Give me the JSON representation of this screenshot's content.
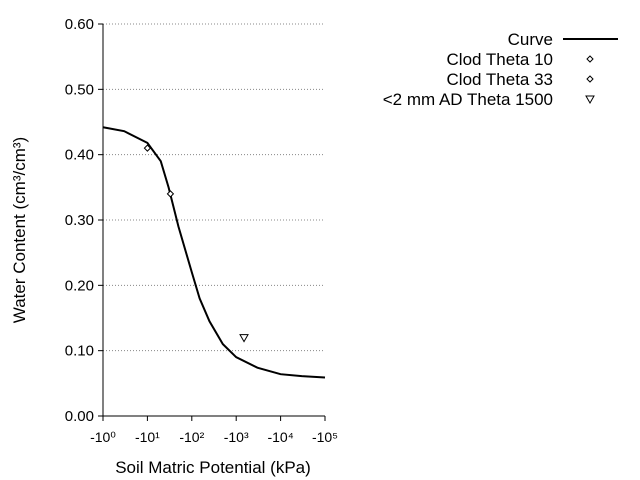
{
  "chart_data": {
    "type": "line",
    "x_label": "Soil Matric Potential (kPa)",
    "y_label": "Water Content (cm³/cm³)",
    "log_x": true,
    "grid": true,
    "legend": "top-right",
    "xlim": [
      -1,
      -100000
    ],
    "xticks": [
      {
        "value": -1,
        "label": "-10⁰"
      },
      {
        "value": -10,
        "label": "-10¹"
      },
      {
        "value": -100,
        "label": "-10²"
      },
      {
        "value": -1000,
        "label": "-10³"
      },
      {
        "value": -10000,
        "label": "-10⁴"
      },
      {
        "value": -100000,
        "label": "-10⁵"
      }
    ],
    "ylim": [
      0,
      0.6
    ],
    "yticks": [
      {
        "value": 0,
        "label": "0.00"
      },
      {
        "value": 0.1,
        "label": "0.10"
      },
      {
        "value": 0.2,
        "label": "0.20"
      },
      {
        "value": 0.3,
        "label": "0.30"
      },
      {
        "value": 0.4,
        "label": "0.40"
      },
      {
        "value": 0.5,
        "label": "0.50"
      },
      {
        "value": 0.6,
        "label": "0.60"
      }
    ],
    "series": [
      {
        "name": "Curve",
        "color": "#000000",
        "marker": "line",
        "x": [
          -1,
          -3,
          -10,
          -20,
          -30,
          -50,
          -100,
          -150,
          -250,
          -500,
          -1000,
          -3000,
          -10000,
          -30000,
          -100000
        ],
        "values": [
          0.442,
          0.436,
          0.418,
          0.39,
          0.35,
          0.29,
          0.22,
          0.18,
          0.145,
          0.11,
          0.09,
          0.074,
          0.064,
          0.061,
          0.059
        ]
      },
      {
        "name": "Clod Theta 10",
        "color": "#000000",
        "marker": "diamond",
        "x": [
          -10
        ],
        "values": [
          0.41
        ]
      },
      {
        "name": "Clod Theta 33",
        "color": "#000000",
        "marker": "diamond",
        "x": [
          -33
        ],
        "values": [
          0.34
        ]
      },
      {
        "name": "<2 mm AD Theta 1500",
        "color": "#000000",
        "marker": "triangle-down",
        "x": [
          -1500
        ],
        "values": [
          0.12
        ]
      }
    ]
  }
}
